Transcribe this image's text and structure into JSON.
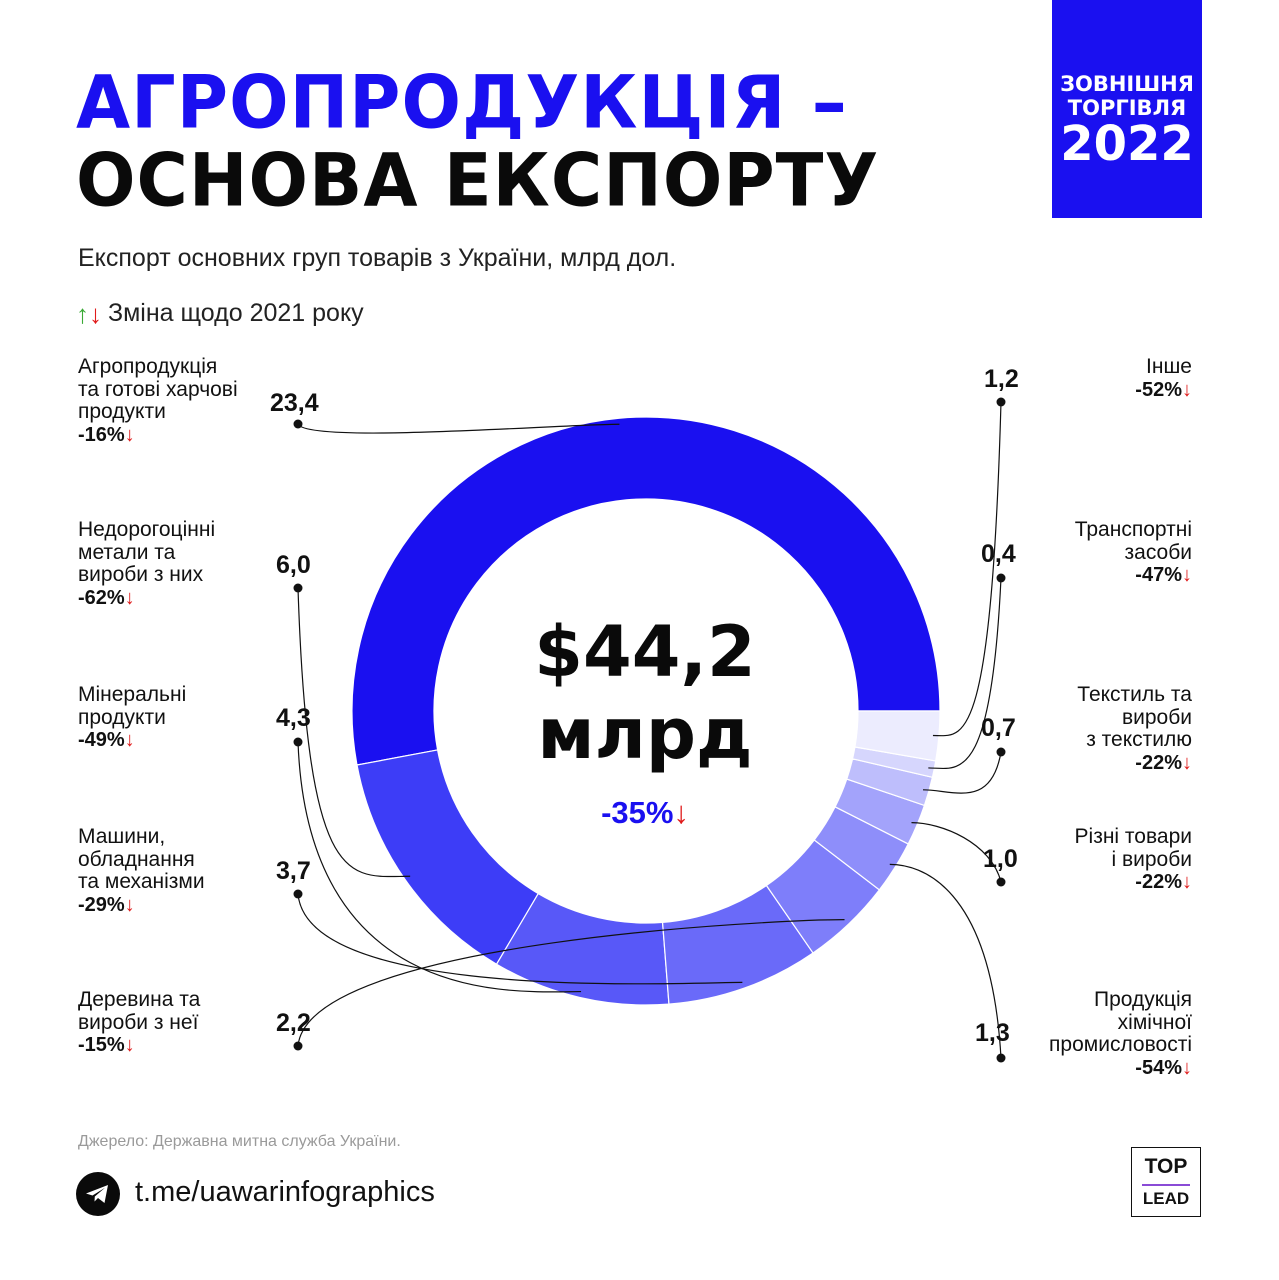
{
  "header": {
    "title_line1": "АГРОПРОДУКЦІЯ –",
    "title_line2": "ОСНОВА ЕКСПОРТУ",
    "badge_line1": "ЗОВНІШНЯ",
    "badge_line2": "ТОРГІВЛЯ",
    "badge_year": "2022",
    "subtitle": "Експорт основних груп товарів з України, млрд дол.",
    "change_legend": "Зміна щодо 2021 року",
    "change_legend_icons": [
      "arrow-up-icon",
      "arrow-down-icon"
    ]
  },
  "colors": {
    "accent": "#1a10f0",
    "decrease": "#e01b1b",
    "increase": "#3aa935",
    "text": "#111111"
  },
  "chart_data": {
    "type": "donut",
    "unit": "млрд дол.",
    "center": {
      "total": "$44,2",
      "unit": "млрд",
      "change": "-35%"
    },
    "slices": [
      {
        "label": "Агропродукція та готові харчові продукти",
        "label_lines": [
          "Агропродукція",
          "та готові харчові",
          "продукти"
        ],
        "value": 23.4,
        "value_label": "23,4",
        "change": "-16%",
        "color": "#1a10f0"
      },
      {
        "label": "Недорогоцінні метали та вироби з них",
        "label_lines": [
          "Недорогоцінні",
          "метали та",
          "вироби з них"
        ],
        "value": 6.0,
        "value_label": "6,0",
        "change": "-62%",
        "color": "#3d3df7"
      },
      {
        "label": "Мінеральні продукти",
        "label_lines": [
          "Мінеральні",
          "продукти"
        ],
        "value": 4.3,
        "value_label": "4,3",
        "change": "-49%",
        "color": "#5858f8"
      },
      {
        "label": "Машини, обладнання та механізми",
        "label_lines": [
          "Машини,",
          "обладнання",
          "та механізми"
        ],
        "value": 3.7,
        "value_label": "3,7",
        "change": "-29%",
        "color": "#6a6af9"
      },
      {
        "label": "Деревина та вироби з неї",
        "label_lines": [
          "Деревина та",
          "вироби з неї"
        ],
        "value": 2.2,
        "value_label": "2,2",
        "change": "-15%",
        "color": "#7e7efa"
      },
      {
        "label": "Продукція хімічної промисловості",
        "label_lines": [
          "Продукція",
          "хімічної",
          "промисловості"
        ],
        "value": 1.3,
        "value_label": "1,3",
        "change": "-54%",
        "color": "#8e8efa"
      },
      {
        "label": "Різні товари і вироби",
        "label_lines": [
          "Різні товари",
          "і вироби"
        ],
        "value": 1.0,
        "value_label": "1,0",
        "change": "-22%",
        "color": "#a3a3fb"
      },
      {
        "label": "Текстиль та вироби з текстилю",
        "label_lines": [
          "Текстиль та",
          "вироби",
          "з текстилю"
        ],
        "value": 0.7,
        "value_label": "0,7",
        "change": "-22%",
        "color": "#bebefc"
      },
      {
        "label": "Транспортні засоби",
        "label_lines": [
          "Транспортні",
          "засоби"
        ],
        "value": 0.4,
        "value_label": "0,4",
        "change": "-47%",
        "color": "#d6d6fd"
      },
      {
        "label": "Інше",
        "label_lines": [
          "Інше"
        ],
        "value": 1.2,
        "value_label": "1,2",
        "change": "-52%",
        "color": "#ececfe"
      }
    ]
  },
  "footer": {
    "source": "Джерело: Державна митна служба України.",
    "link_icon": "telegram-icon",
    "link": "t.me/uawarinfographics",
    "logo_top": "TOP",
    "logo_bottom": "LEAD"
  }
}
